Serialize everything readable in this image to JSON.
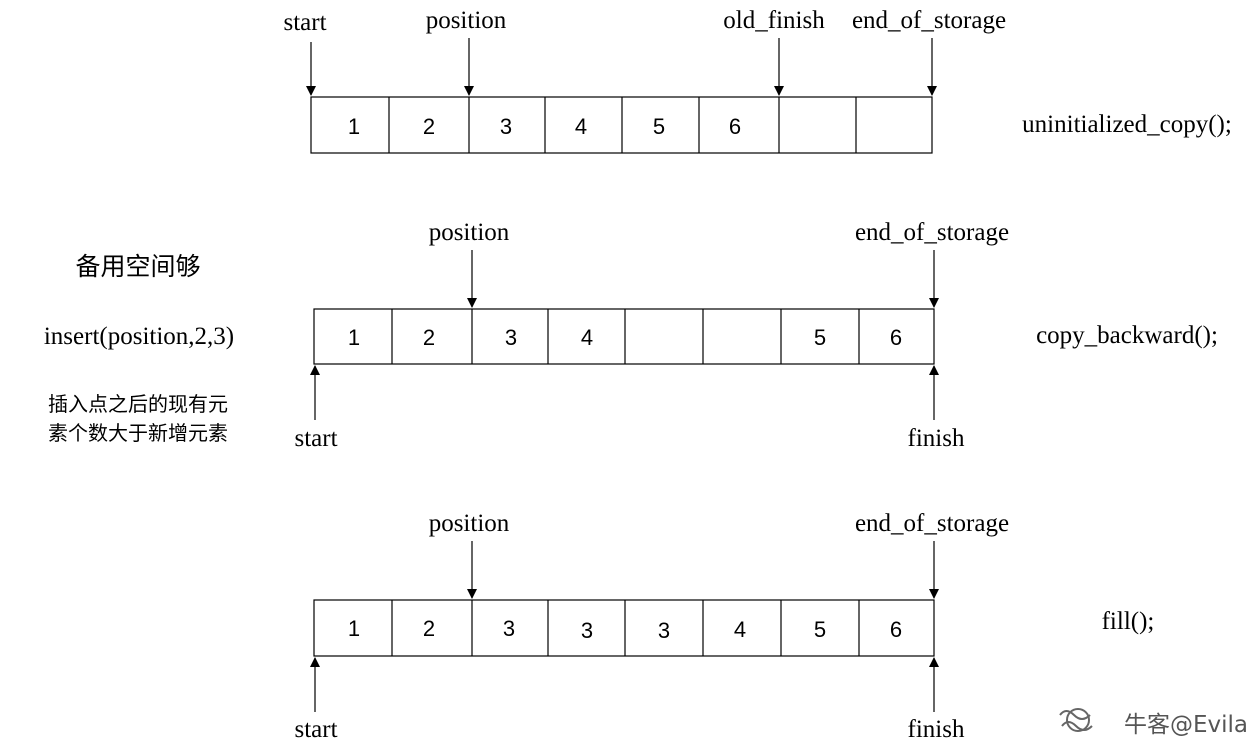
{
  "watermark": "牛客@Evila",
  "side_notes": {
    "enough_space": "备用空间够",
    "call": "insert(position,2,3)",
    "condition_line1": "插入点之后的现有元",
    "condition_line2": "素个数大于新增元素"
  },
  "rows": [
    {
      "cells": [
        "1",
        "2",
        "3",
        "4",
        "5",
        "6",
        "",
        ""
      ],
      "func": "uninitialized_copy();",
      "labels": {
        "start": "start",
        "position": "position",
        "old_finish": "old_finish",
        "end_of_storage": "end_of_storage"
      }
    },
    {
      "cells": [
        "1",
        "2",
        "3",
        "4",
        "",
        "",
        "5",
        "6"
      ],
      "func": "copy_backward();",
      "labels": {
        "position": "position",
        "end_of_storage": "end_of_storage",
        "start": "start",
        "finish": "finish"
      }
    },
    {
      "cells": [
        "1",
        "2",
        "3",
        "3",
        "3",
        "4",
        "5",
        "6"
      ],
      "func": "fill();",
      "labels": {
        "position": "position",
        "end_of_storage": "end_of_storage",
        "start": "start",
        "finish": "finish"
      }
    }
  ]
}
